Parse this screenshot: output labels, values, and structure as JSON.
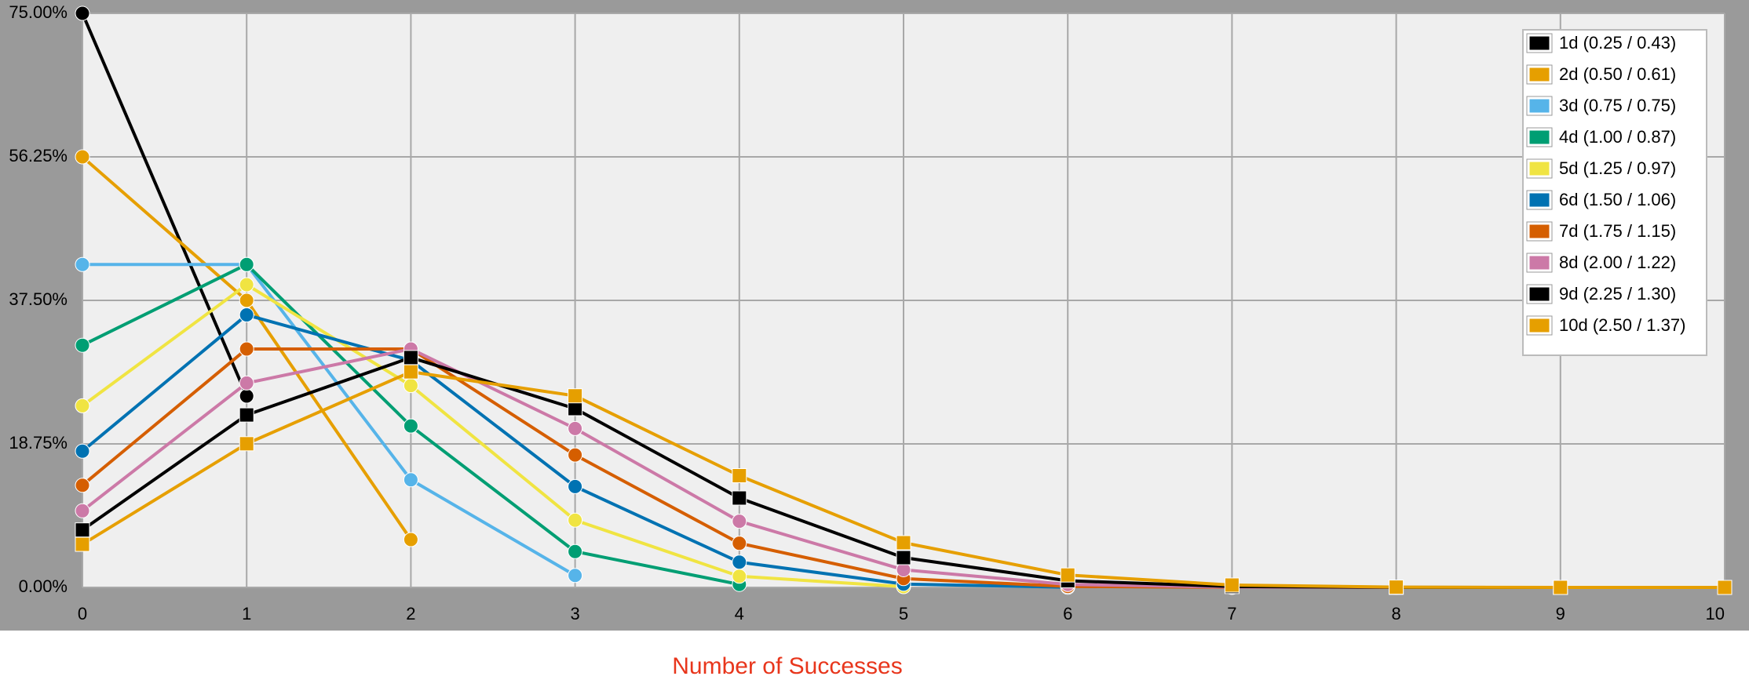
{
  "chart_data": {
    "type": "line",
    "x_label": "Number of Successes",
    "x": [
      0,
      1,
      2,
      3,
      4,
      5,
      6,
      7,
      8,
      9,
      10
    ],
    "xlim": [
      0,
      10
    ],
    "xticks": [
      0,
      1,
      2,
      3,
      4,
      5,
      6,
      7,
      8,
      9,
      10
    ],
    "ylim": [
      0,
      75
    ],
    "yticks": [
      {
        "value": 0,
        "label": "0.00%"
      },
      {
        "value": 18.75,
        "label": "18.75%"
      },
      {
        "value": 37.5,
        "label": "37.50%"
      },
      {
        "value": 56.25,
        "label": "56.25%"
      },
      {
        "value": 75,
        "label": "75.00%"
      }
    ],
    "grid": true,
    "legend": "upper right",
    "series": [
      {
        "name": "1d (0.25 / 0.43)",
        "color": "#000000",
        "marker": "circle",
        "values": [
          75,
          25,
          null,
          null,
          null,
          null,
          null,
          null,
          null,
          null,
          null
        ]
      },
      {
        "name": "2d (0.50 / 0.61)",
        "color": "#e69f00",
        "marker": "circle",
        "values": [
          56.25,
          37.5,
          6.25,
          null,
          null,
          null,
          null,
          null,
          null,
          null,
          null
        ]
      },
      {
        "name": "3d (0.75 / 0.75)",
        "color": "#56b4e9",
        "marker": "circle",
        "values": [
          42.19,
          42.19,
          14.06,
          1.56,
          null,
          null,
          null,
          null,
          null,
          null,
          null
        ]
      },
      {
        "name": "4d (1.00 / 0.87)",
        "color": "#009e73",
        "marker": "circle",
        "values": [
          31.64,
          42.19,
          21.09,
          4.69,
          0.39,
          null,
          null,
          null,
          null,
          null,
          null
        ]
      },
      {
        "name": "5d (1.25 / 0.97)",
        "color": "#f0e442",
        "marker": "circle",
        "values": [
          23.73,
          39.55,
          26.37,
          8.79,
          1.46,
          0.1,
          null,
          null,
          null,
          null,
          null
        ]
      },
      {
        "name": "6d (1.50 / 1.06)",
        "color": "#0072b2",
        "marker": "circle",
        "values": [
          17.8,
          35.6,
          29.66,
          13.18,
          3.3,
          0.44,
          0.02,
          null,
          null,
          null,
          null
        ]
      },
      {
        "name": "7d (1.75 / 1.15)",
        "color": "#d55e00",
        "marker": "circle",
        "values": [
          13.35,
          31.15,
          31.15,
          17.3,
          5.77,
          1.15,
          0.13,
          0.01,
          null,
          null,
          null
        ]
      },
      {
        "name": "8d (2.00 / 1.22)",
        "color": "#cc79a7",
        "marker": "circle",
        "values": [
          10.01,
          26.7,
          31.15,
          20.76,
          8.65,
          2.31,
          0.38,
          0.04,
          0,
          null,
          null
        ]
      },
      {
        "name": "9d (2.25 / 1.30)",
        "color": "#000000",
        "marker": "square",
        "values": [
          7.51,
          22.53,
          30.03,
          23.36,
          11.68,
          3.89,
          0.87,
          0.12,
          0.01,
          0,
          null
        ]
      },
      {
        "name": "10d (2.50 / 1.37)",
        "color": "#e69f00",
        "marker": "square",
        "values": [
          5.63,
          18.77,
          28.16,
          25.03,
          14.6,
          5.84,
          1.62,
          0.31,
          0.04,
          0,
          0
        ]
      }
    ]
  }
}
